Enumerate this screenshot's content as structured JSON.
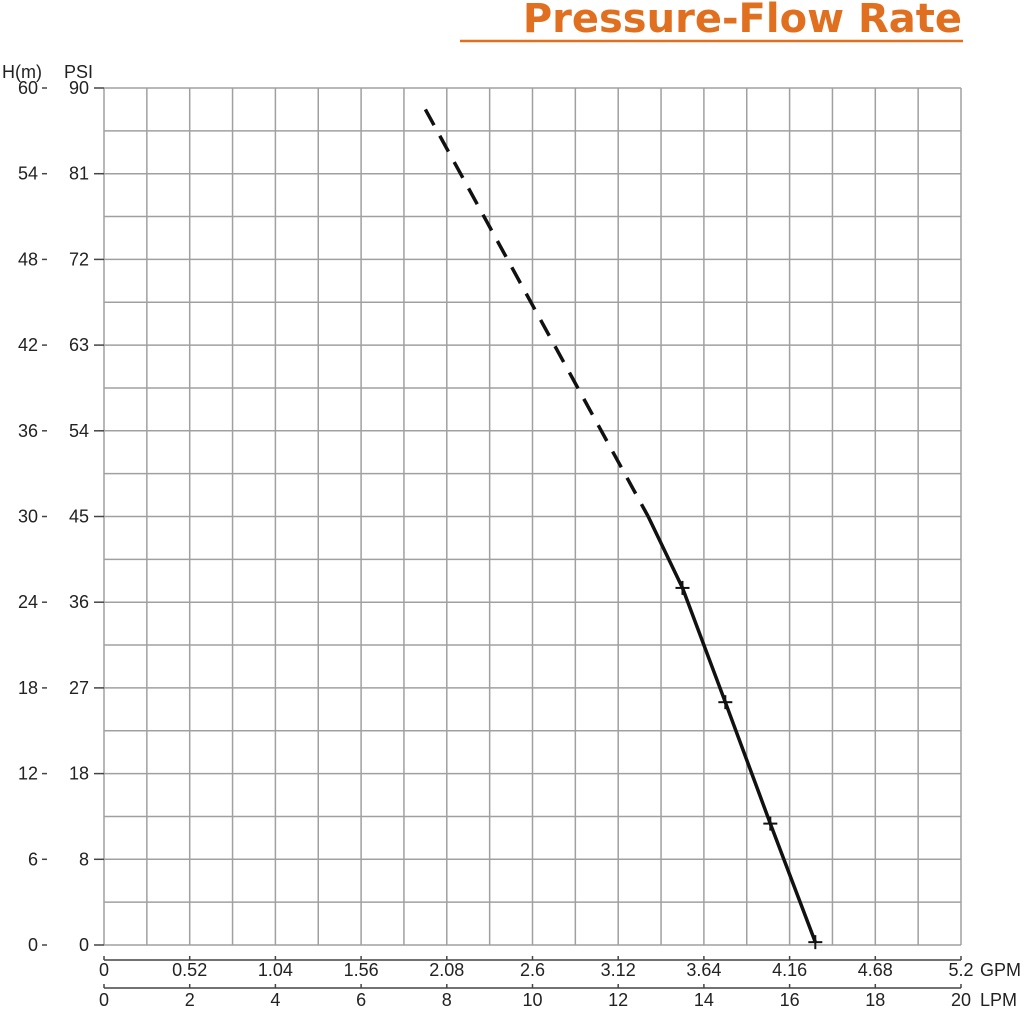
{
  "chart_data": {
    "type": "line",
    "title": "Pressure-Flow Rate",
    "y_left_label": "H(m)",
    "y_right_label": "PSI",
    "x_top_label": "GPM",
    "x_bottom_label": "LPM",
    "y_left_ticks": [
      "0",
      "6",
      "12",
      "18",
      "24",
      "30",
      "36",
      "42",
      "48",
      "54",
      "60"
    ],
    "y_right_ticks": [
      "0",
      "8",
      "18",
      "27",
      "36",
      "45",
      "54",
      "63",
      "72",
      "81",
      "90"
    ],
    "x_top_ticks": [
      "0",
      "0.52",
      "1.04",
      "1.56",
      "2.08",
      "2.6",
      "3.12",
      "3.64",
      "4.16",
      "4.68",
      "5.2"
    ],
    "x_bottom_ticks": [
      "0",
      "2",
      "4",
      "6",
      "8",
      "10",
      "12",
      "14",
      "16",
      "18",
      "20"
    ],
    "xlim": [
      0,
      20
    ],
    "ylim": [
      0,
      60
    ],
    "grid": true,
    "colors": {
      "title": "#e07020",
      "grid": "#a0a0a0",
      "line": "#111111"
    },
    "series": [
      {
        "style": "dashed",
        "x": [
          7.5,
          12.7
        ],
        "y": [
          58.5,
          30.0
        ]
      },
      {
        "style": "solid",
        "markers": true,
        "x": [
          12.7,
          13.5,
          14.5,
          15.55,
          16.6
        ],
        "y": [
          30.0,
          25.0,
          17.0,
          8.5,
          0.2
        ],
        "marker_x": [
          13.5,
          14.5,
          15.55,
          16.6
        ],
        "marker_y": [
          25.0,
          17.0,
          8.5,
          0.2
        ]
      }
    ]
  }
}
